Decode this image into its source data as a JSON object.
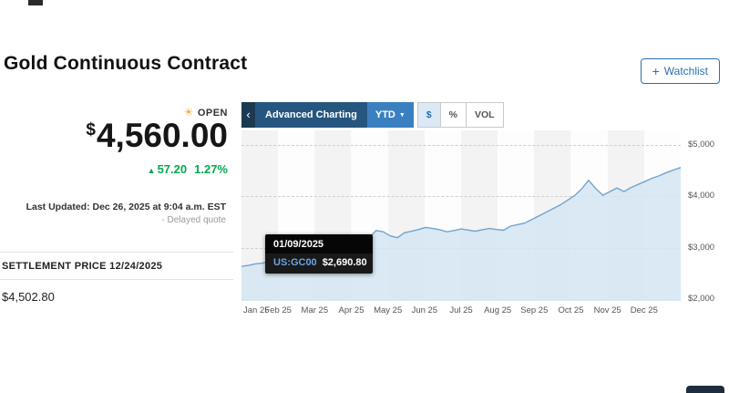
{
  "header": {
    "title": "Gold Continuous Contract",
    "watchlist_label": "Watchlist"
  },
  "icons": {
    "plus": "+",
    "sun": "☀",
    "up_arrow": "▲",
    "caret_down": "▼",
    "chevron_left": "‹"
  },
  "quote": {
    "status": "OPEN",
    "currency": "$",
    "price": "4,560.00",
    "change": "57.20",
    "change_pct": "1.27%",
    "last_updated": "Last Updated: Dec 26, 2025 at 9:04 a.m. EST",
    "delayed_note": "- Delayed quote"
  },
  "settlement": {
    "label": "SETTLEMENT PRICE 12/24/2025",
    "value": "$4,502.80"
  },
  "toolbar": {
    "advanced_charting": "Advanced Charting",
    "range": "YTD",
    "dollar": "$",
    "percent": "%",
    "vol": "VOL"
  },
  "tooltip": {
    "date": "01/09/2025",
    "symbol": "US:GC00",
    "price": "$2,690.80"
  },
  "colors": {
    "positive_green": "#00a94f",
    "watchlist_blue": "#2a6fb0",
    "advanced_button_navy": "#26567f",
    "range_button_blue": "#3a80c0",
    "tooltip_symbol_blue": "#6aa6dd"
  },
  "chart_data": {
    "type": "area",
    "symbol": "US:GC00",
    "title": "",
    "xlabel": "",
    "ylabel": "",
    "ylim": [
      1970,
      5280
    ],
    "grid": true,
    "legend": "none",
    "x_labels": [
      "Jan 25",
      "Feb 25",
      "Mar 25",
      "Apr 25",
      "May 25",
      "Jun 25",
      "Jul 25",
      "Aug 25",
      "Sep 25",
      "Oct 25",
      "Nov 25",
      "Dec 25"
    ],
    "y_ticks": [
      {
        "value": 5000,
        "label": "$5,000"
      },
      {
        "value": 4000,
        "label": "$4,000"
      },
      {
        "value": 3000,
        "label": "$3,000"
      },
      {
        "value": 2000,
        "label": "$2,000"
      }
    ],
    "line_color": "#71a4cf",
    "fill_color": "#d4e5f2",
    "values": [
      2640,
      2658,
      2691,
      2702,
      2748,
      2772,
      2832,
      2882,
      2916,
      2936,
      2886,
      2906,
      2952,
      2996,
      3046,
      3092,
      3136,
      3246,
      3192,
      3336,
      3312,
      3232,
      3196,
      3292,
      3322,
      3356,
      3396,
      3376,
      3352,
      3312,
      3336,
      3366,
      3346,
      3322,
      3352,
      3376,
      3356,
      3342,
      3422,
      3452,
      3482,
      3552,
      3622,
      3692,
      3762,
      3832,
      3922,
      4012,
      4142,
      4312,
      4152,
      4022,
      4092,
      4162,
      4092,
      4172,
      4232,
      4292,
      4352,
      4402,
      4462,
      4512,
      4560
    ]
  }
}
